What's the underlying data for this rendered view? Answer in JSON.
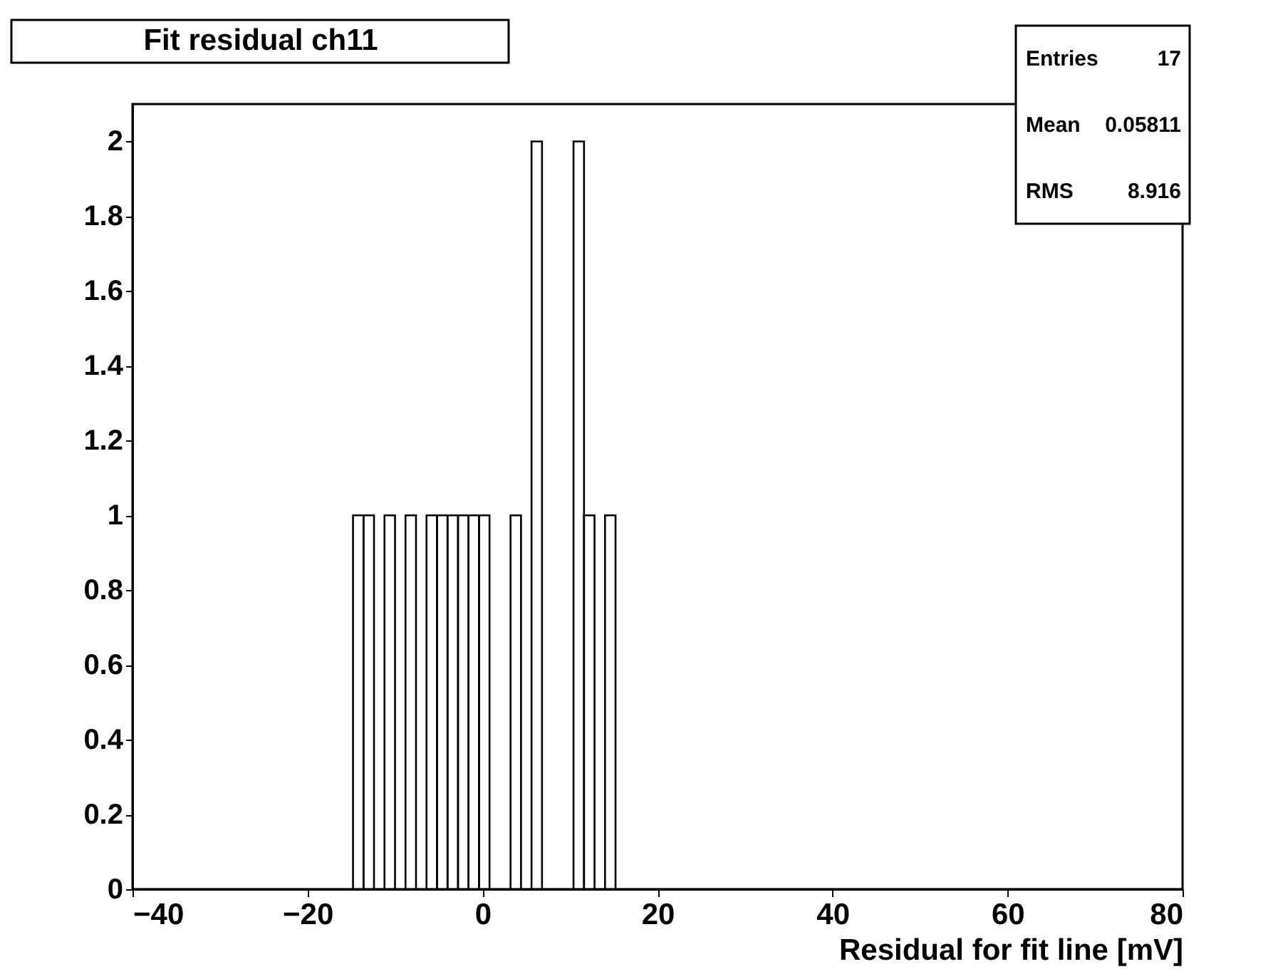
{
  "chart_data": {
    "type": "histogram",
    "title": "Fit residual ch11",
    "xlabel": "Residual for fit line [mV]",
    "bins": [
      -40,
      -38.8,
      -37.6,
      -36.4,
      -35.2,
      -34,
      -32.8,
      -31.6,
      -30.4,
      -29.2,
      -28,
      -26.8,
      -25.6,
      -24.4,
      -23.2,
      -22,
      -20.8,
      -19.6,
      -18.4,
      -17.2,
      -16,
      -14.8,
      -13.6,
      -12.4,
      -11.2,
      -10,
      -8.8,
      -7.6,
      -6.4,
      -5.2,
      -4,
      -2.8,
      -1.6,
      -0.4,
      0.8,
      2,
      3.2,
      4.4,
      5.6,
      6.8,
      8,
      9.2,
      10.4,
      11.6,
      12.8,
      14,
      15.2,
      16.4,
      17.6,
      18.8,
      20,
      21.2,
      22.4,
      23.6,
      24.8,
      26,
      27.2,
      28.4,
      29.6,
      30.8,
      32,
      33.2,
      34.4,
      35.6,
      36.8,
      38,
      39.2,
      40.4,
      41.6,
      42.8,
      44,
      45.2,
      46.4,
      47.6,
      48.8,
      50,
      51.2,
      52.4,
      53.6,
      54.8,
      56,
      57.2,
      58.4,
      59.6,
      60.8,
      62,
      63.2,
      64.4,
      65.6,
      66.8,
      68,
      69.2,
      70.4,
      71.6,
      72.8,
      74,
      75.2,
      76.4,
      77.6,
      78.8,
      80
    ],
    "values": [
      0,
      0,
      0,
      0,
      0,
      0,
      0,
      0,
      0,
      0,
      0,
      0,
      0,
      0,
      0,
      0,
      0,
      0,
      0,
      0,
      0,
      1,
      1,
      0,
      1,
      0,
      1,
      0,
      1,
      1,
      1,
      1,
      1,
      1,
      0,
      0,
      1,
      0,
      2,
      0,
      0,
      0,
      2,
      1,
      0,
      1,
      0,
      0,
      0,
      0,
      0,
      0,
      0,
      0,
      0,
      0,
      0,
      0,
      0,
      0,
      0,
      0,
      0,
      0,
      0,
      0,
      0,
      0,
      0,
      0,
      0,
      0,
      0,
      0,
      0,
      0,
      0,
      0,
      0,
      0,
      0,
      0,
      0,
      0,
      0,
      0,
      0,
      0,
      0,
      0,
      0,
      0,
      0,
      0,
      0,
      0,
      0,
      0,
      0,
      0
    ],
    "color": "#000000",
    "xlim": [
      -40,
      80
    ],
    "xticks": [
      -40,
      -20,
      0,
      20,
      40,
      60,
      80
    ],
    "ylim": [
      0,
      2.1
    ],
    "yticks": [
      0,
      0.2,
      0.4,
      0.6,
      0.8,
      1,
      1.2,
      1.4,
      1.6,
      1.8,
      2
    ],
    "grid": false,
    "annotations": [
      "Entries",
      "17",
      "Mean",
      "0.05811",
      "RMS",
      "8.916"
    ]
  }
}
